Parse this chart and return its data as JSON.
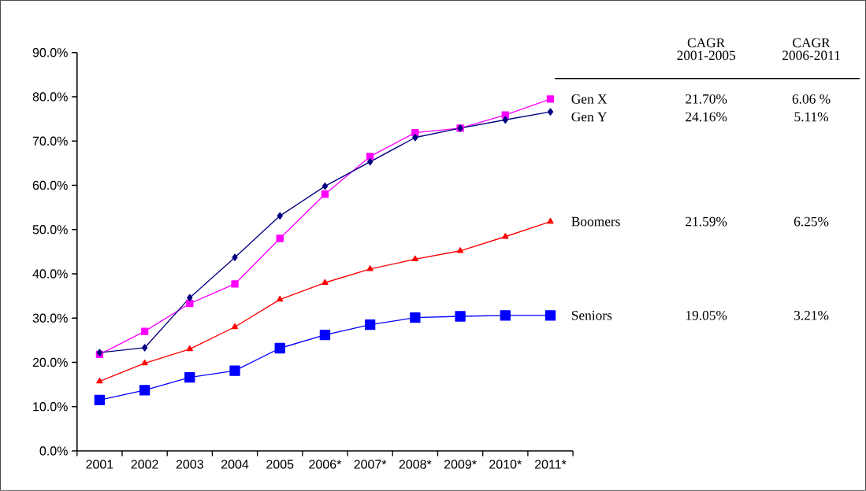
{
  "chart_data": {
    "type": "line",
    "categories": [
      "2001",
      "2002",
      "2003",
      "2004",
      "2005",
      "2006*",
      "2007*",
      "2008*",
      "2009*",
      "2010*",
      "2011*"
    ],
    "series": [
      {
        "name": "Gen X",
        "color": "#ff00ff",
        "marker": "square",
        "values": [
          21.8,
          27.0,
          33.3,
          37.7,
          48.0,
          58.0,
          66.5,
          71.9,
          72.9,
          75.9,
          79.5
        ]
      },
      {
        "name": "Gen Y",
        "color": "#000080",
        "marker": "diamond",
        "values": [
          22.2,
          23.3,
          34.6,
          43.7,
          53.1,
          59.8,
          65.3,
          70.8,
          72.9,
          74.8,
          76.6
        ]
      },
      {
        "name": "Boomers",
        "color": "#ff0000",
        "marker": "triangle",
        "values": [
          15.7,
          19.8,
          23.0,
          28.0,
          34.2,
          38.0,
          41.1,
          43.3,
          45.2,
          48.4,
          51.8
        ]
      },
      {
        "name": "Seniors",
        "color": "#0000ff",
        "marker": "square",
        "values": [
          11.5,
          13.7,
          16.6,
          18.1,
          23.2,
          26.2,
          28.5,
          30.1,
          30.4,
          30.6,
          30.6
        ]
      }
    ],
    "ylim": [
      0,
      90
    ],
    "yticks": [
      {
        "value": 0,
        "label": "0.0%"
      },
      {
        "value": 10,
        "label": "10.0%"
      },
      {
        "value": 20,
        "label": "20.0%"
      },
      {
        "value": 30,
        "label": "30.0%"
      },
      {
        "value": 40,
        "label": "40.0%"
      },
      {
        "value": 50,
        "label": "50.0%"
      },
      {
        "value": 60,
        "label": "60.0%"
      },
      {
        "value": 70,
        "label": "70.0%"
      },
      {
        "value": 80,
        "label": "80.0%"
      },
      {
        "value": 90,
        "label": "90.0%"
      }
    ],
    "annotations": [
      "CAGR 2001-2005",
      "CAGR 2006-2011",
      "21.70%",
      "6.06 %",
      "24.16%",
      "5.11%",
      "21.59%",
      "6.25%",
      "19.05%",
      "3.21%"
    ]
  }
}
